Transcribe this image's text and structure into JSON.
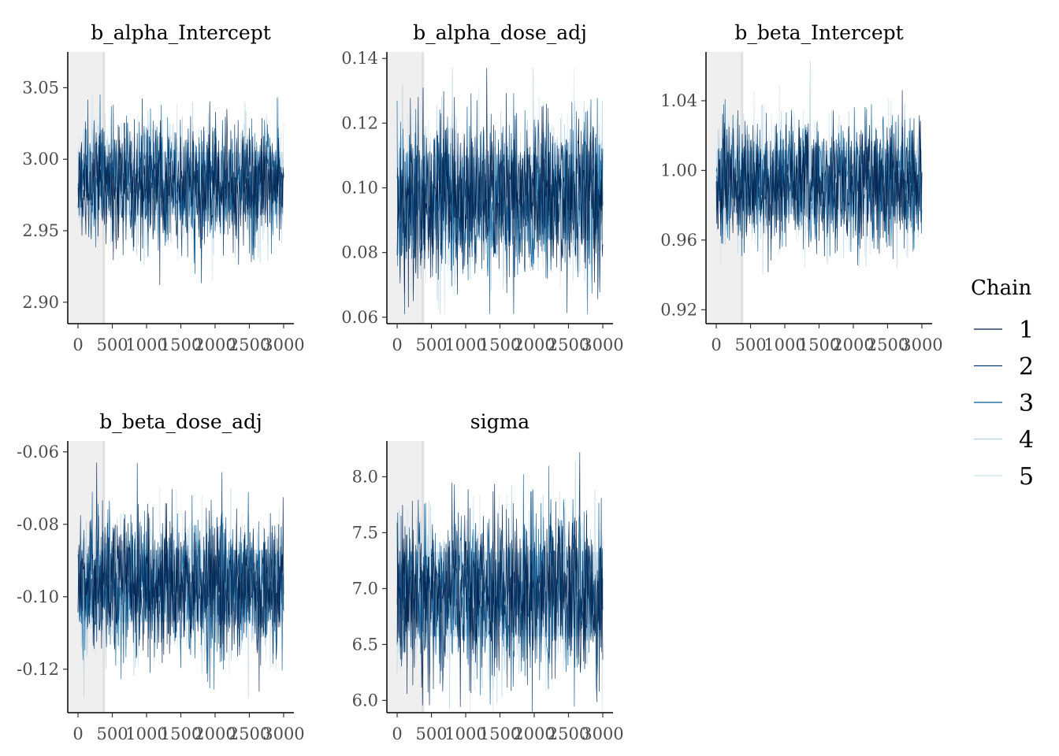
{
  "chart_data": {
    "type": "line",
    "legend": {
      "title": "Chain",
      "placement": "right",
      "entries": [
        "1",
        "2",
        "3",
        "4",
        "5"
      ],
      "colors": [
        "#011f4b",
        "#03396c",
        "#005b96",
        "#b3cde0",
        "#d1e1ec"
      ]
    },
    "warmup_shading": {
      "from": 0,
      "to": 375,
      "color": "#efefef"
    },
    "band_color": "#d1e1ec",
    "panels": [
      {
        "title": "b_alpha_Intercept",
        "x_ticks": [
          0,
          500,
          1000,
          1500,
          2000,
          2500,
          3000
        ],
        "x_tick_labels": [
          "0",
          "500",
          "1000",
          "1500",
          "2000",
          "2500",
          "3000"
        ],
        "xlim": [
          -150,
          3150
        ],
        "y_ticks": [
          2.9,
          2.95,
          3.0,
          3.05
        ],
        "y_tick_labels": [
          "2.90",
          "2.95",
          "3.00",
          "3.05"
        ],
        "ylim": [
          2.885,
          3.075
        ],
        "center": 2.983,
        "sd": 0.021,
        "min": 2.898,
        "max": 3.067
      },
      {
        "title": "b_alpha_dose_adj",
        "x_ticks": [
          0,
          500,
          1000,
          1500,
          2000,
          2500,
          3000
        ],
        "x_tick_labels": [
          "0",
          "500",
          "1000",
          "1500",
          "2000",
          "2500",
          "3000"
        ],
        "xlim": [
          -150,
          3150
        ],
        "y_ticks": [
          0.06,
          0.08,
          0.1,
          0.12,
          0.14
        ],
        "y_tick_labels": [
          "0.06",
          "0.08",
          "0.10",
          "0.12",
          "0.14"
        ],
        "ylim": [
          0.058,
          0.142
        ],
        "center": 0.097,
        "sd": 0.0125,
        "min": 0.061,
        "max": 0.137
      },
      {
        "title": "b_beta_Intercept",
        "x_ticks": [
          0,
          500,
          1000,
          1500,
          2000,
          2500,
          3000
        ],
        "x_tick_labels": [
          "0",
          "500",
          "1000",
          "1500",
          "2000",
          "2500",
          "3000"
        ],
        "xlim": [
          -150,
          3150
        ],
        "y_ticks": [
          0.92,
          0.96,
          1.0,
          1.04
        ],
        "y_tick_labels": [
          "0.92",
          "0.96",
          "1.00",
          "1.04"
        ],
        "ylim": [
          0.912,
          1.068
        ],
        "center": 0.993,
        "sd": 0.0175,
        "min": 0.922,
        "max": 1.063
      },
      {
        "title": "b_beta_dose_adj",
        "x_ticks": [
          0,
          500,
          1000,
          1500,
          2000,
          2500,
          3000
        ],
        "x_tick_labels": [
          "0",
          "500",
          "1000",
          "1500",
          "2000",
          "2500",
          "3000"
        ],
        "xlim": [
          -150,
          3150
        ],
        "y_ticks": [
          -0.12,
          -0.1,
          -0.08,
          -0.06
        ],
        "y_tick_labels": [
          "-0.12",
          "-0.10",
          "-0.08",
          "-0.06"
        ],
        "ylim": [
          -0.132,
          -0.057
        ],
        "center": -0.097,
        "sd": 0.0095,
        "min": -0.128,
        "max": -0.061
      },
      {
        "title": "sigma",
        "x_ticks": [
          0,
          500,
          1000,
          1500,
          2000,
          2500,
          3000
        ],
        "x_tick_labels": [
          "0",
          "500",
          "1000",
          "1500",
          "2000",
          "2500",
          "3000"
        ],
        "xlim": [
          -150,
          3150
        ],
        "y_ticks": [
          6.0,
          6.5,
          7.0,
          7.5,
          8.0
        ],
        "y_tick_labels": [
          "6.0",
          "6.5",
          "7.0",
          "7.5",
          "8.0"
        ],
        "ylim": [
          5.89,
          8.32
        ],
        "center": 6.95,
        "sd": 0.36,
        "min": 5.9,
        "max": 8.22
      }
    ]
  }
}
